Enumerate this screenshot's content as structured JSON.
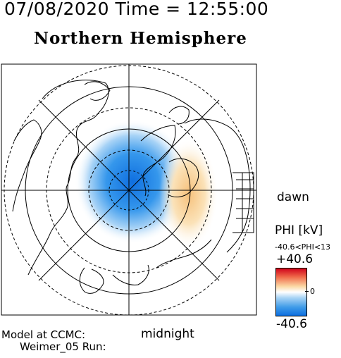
{
  "header": {
    "datetime": "07/08/2020 Time = 12:55:00",
    "hemisphere": "Northern Hemisphere"
  },
  "orientation": {
    "dawn_label": "dawn",
    "midnight_label": "midnight"
  },
  "legend": {
    "quantity_label": "PHI [kV]",
    "range_text": "-40.6<PHI<13",
    "max_label": "+40.6",
    "min_label": "-40.6",
    "zero_label": "0",
    "colors": {
      "max": "#d0021b",
      "mid": "#ffffff",
      "min": "#0e6fe0"
    }
  },
  "footer": {
    "model_line": "Model at CCMC:",
    "run_line": "Weimer_05 Run:"
  },
  "map": {
    "projection": "north-polar",
    "potential_cells": [
      {
        "sign": "negative",
        "color": "#1a7fe6"
      },
      {
        "sign": "positive",
        "color": "#f7c98a"
      }
    ]
  }
}
